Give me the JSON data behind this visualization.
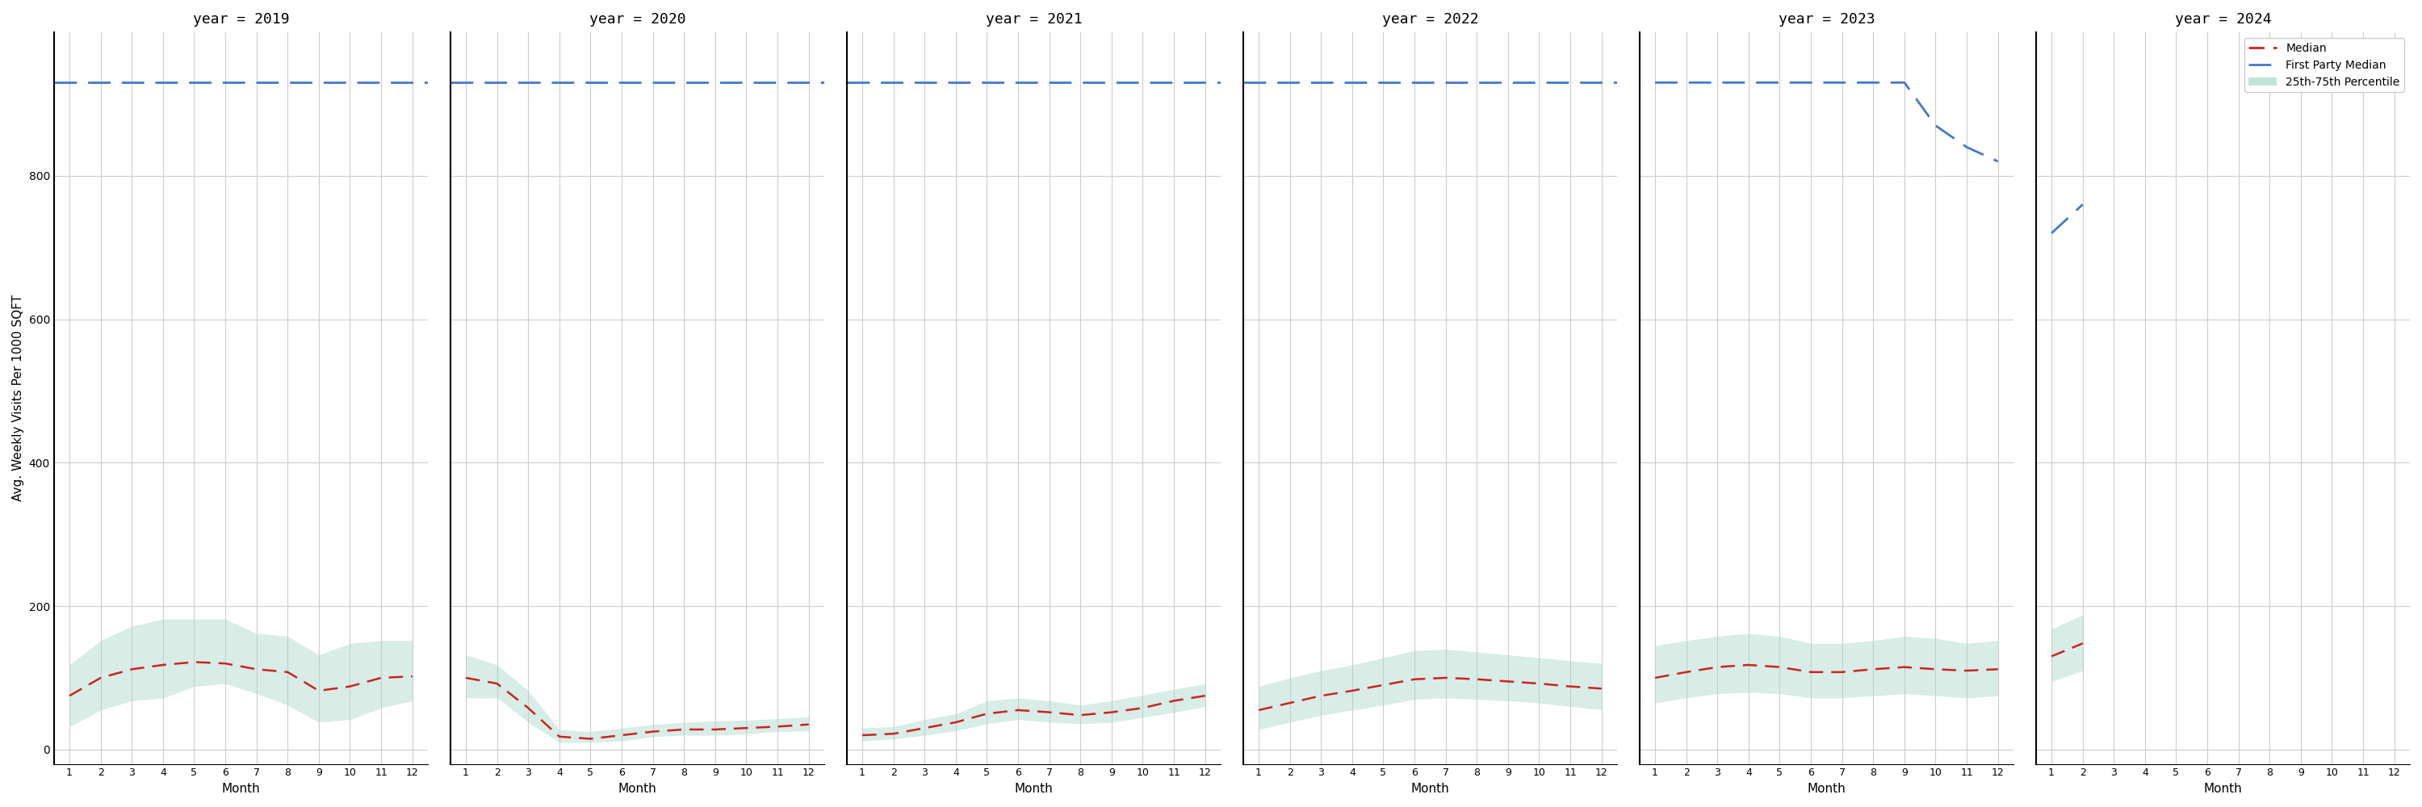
{
  "years": [
    2019,
    2020,
    2021,
    2022,
    2023,
    2024
  ],
  "months": [
    1,
    2,
    3,
    4,
    5,
    6,
    7,
    8,
    9,
    10,
    11,
    12
  ],
  "first_party_median": 930,
  "ylabel": "Avg. Weekly Visits Per 1000 SQFT",
  "xlabel": "Month",
  "ylim": [
    -20,
    1000
  ],
  "yticks": [
    0,
    200,
    400,
    600,
    800
  ],
  "bg_color": "#ffffff",
  "grid_color": "#cccccc",
  "median_color": "#cc2222",
  "fp_median_color": "#4477cc",
  "band_color": "#a8d8c8",
  "band_alpha": 0.45,
  "median_2019": [
    75,
    100,
    112,
    118,
    122,
    120,
    112,
    108,
    82,
    88,
    100,
    102
  ],
  "p25_2019": [
    32,
    55,
    68,
    72,
    88,
    92,
    78,
    62,
    38,
    42,
    58,
    68
  ],
  "p75_2019": [
    118,
    152,
    172,
    182,
    182,
    182,
    162,
    158,
    132,
    148,
    152,
    152
  ],
  "median_2020": [
    100,
    92,
    58,
    18,
    15,
    20,
    25,
    28,
    28,
    30,
    32,
    35
  ],
  "p25_2020": [
    72,
    72,
    38,
    10,
    10,
    12,
    18,
    20,
    20,
    22,
    25,
    26
  ],
  "p75_2020": [
    132,
    118,
    82,
    28,
    25,
    30,
    35,
    38,
    40,
    41,
    43,
    46
  ],
  "median_2021": [
    20,
    22,
    30,
    38,
    50,
    55,
    52,
    48,
    52,
    58,
    68,
    75
  ],
  "p25_2021": [
    12,
    15,
    20,
    26,
    36,
    42,
    38,
    36,
    38,
    45,
    52,
    60
  ],
  "p75_2021": [
    30,
    32,
    42,
    50,
    68,
    72,
    68,
    62,
    68,
    76,
    84,
    92
  ],
  "median_2022": [
    55,
    65,
    75,
    82,
    90,
    98,
    100,
    98,
    95,
    92,
    88,
    85
  ],
  "p25_2022": [
    28,
    38,
    48,
    55,
    62,
    70,
    72,
    70,
    68,
    65,
    60,
    56
  ],
  "p75_2022": [
    88,
    100,
    110,
    118,
    128,
    138,
    140,
    136,
    132,
    128,
    124,
    120
  ],
  "median_2023": [
    100,
    108,
    115,
    118,
    115,
    108,
    108,
    112,
    115,
    112,
    110,
    112
  ],
  "p25_2023": [
    65,
    72,
    78,
    80,
    78,
    72,
    72,
    75,
    78,
    75,
    72,
    75
  ],
  "p75_2023": [
    145,
    152,
    158,
    162,
    158,
    148,
    148,
    152,
    158,
    155,
    148,
    152
  ],
  "fp_median_2023": [
    930,
    930,
    930,
    930,
    930,
    930,
    930,
    930,
    930,
    870,
    840,
    820
  ],
  "median_2024": [
    130,
    148,
    null,
    null,
    null,
    null,
    null,
    null,
    null,
    null,
    null,
    null
  ],
  "p25_2024": [
    95,
    110,
    null,
    null,
    null,
    null,
    null,
    null,
    null,
    null,
    null,
    null
  ],
  "p75_2024": [
    168,
    188,
    null,
    null,
    null,
    null,
    null,
    null,
    null,
    null,
    null,
    null
  ],
  "fp_median_2024": [
    720,
    760,
    null,
    null,
    null,
    null,
    null,
    null,
    null,
    null,
    null,
    null
  ]
}
